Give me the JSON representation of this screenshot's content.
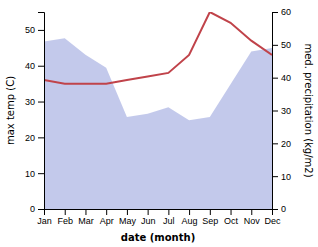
{
  "chart_data": {
    "type": "line",
    "categories": [
      "Jan",
      "Feb",
      "Mar",
      "Apr",
      "May",
      "Jun",
      "Jul",
      "Aug",
      "Sep",
      "Oct",
      "Nov",
      "Dec"
    ],
    "xlabel": "date (month)",
    "ylabel": "max temp (C)",
    "y2label": "med. precipitation (kg/m2)",
    "ylim": [
      0,
      55
    ],
    "yticks": [
      0,
      10,
      20,
      30,
      40,
      50
    ],
    "y2lim": [
      0,
      60
    ],
    "y2ticks": [
      0,
      10,
      20,
      30,
      40,
      50,
      60
    ],
    "series": [
      {
        "type": "area",
        "axis": "y2",
        "color": "#b8bfe8",
        "values": [
          51,
          52,
          47,
          43,
          28,
          29,
          31,
          27,
          28,
          38,
          48,
          49
        ]
      },
      {
        "type": "line",
        "color": "#c0434a",
        "values": [
          36,
          35,
          35,
          35,
          36,
          37,
          38,
          43,
          55,
          52,
          47,
          43
        ]
      }
    ]
  }
}
